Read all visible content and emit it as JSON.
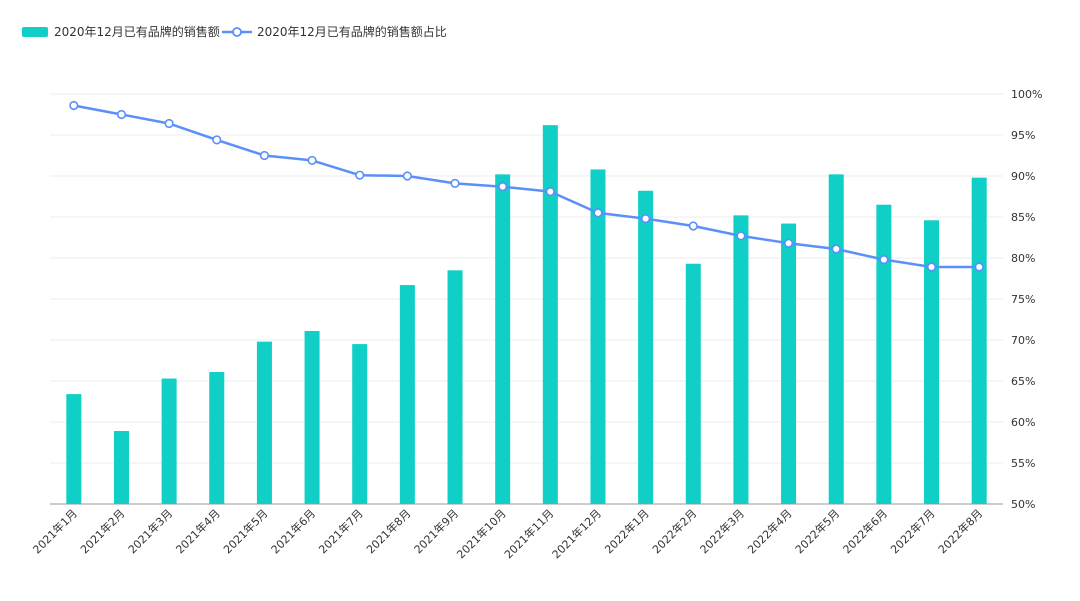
{
  "chart_data": {
    "type": "bar+line",
    "categories": [
      "2021年1月",
      "2021年2月",
      "2021年3月",
      "2021年4月",
      "2021年5月",
      "2021年6月",
      "2021年7月",
      "2021年8月",
      "2021年9月",
      "2021年10月",
      "2021年11月",
      "2021年12月",
      "2022年1月",
      "2022年2月",
      "2022年3月",
      "2022年4月",
      "2022年5月",
      "2022年6月",
      "2022年7月",
      "2022年8月"
    ],
    "series": [
      {
        "name": "2020年12月已有品牌的销售额",
        "type": "bar",
        "axis": "none",
        "values": [
          63.4,
          58.9,
          65.3,
          66.1,
          69.8,
          71.1,
          69.5,
          76.7,
          78.5,
          90.2,
          96.2,
          90.8,
          88.2,
          79.3,
          85.2,
          84.2,
          90.2,
          86.5,
          84.6,
          89.8
        ]
      },
      {
        "name": "2020年12月已有品牌的销售额占比",
        "type": "line",
        "axis": "right",
        "values": [
          98.6,
          97.5,
          96.4,
          94.4,
          92.5,
          91.9,
          90.1,
          90.0,
          89.1,
          88.7,
          88.1,
          85.5,
          84.8,
          83.9,
          82.7,
          81.8,
          81.1,
          79.8,
          78.9,
          78.9
        ]
      }
    ],
    "y_right": {
      "ylim": [
        50,
        100
      ],
      "ticks": [
        "100%",
        "95%",
        "90%",
        "85%",
        "80%",
        "75%",
        "70%",
        "65%",
        "60%",
        "55%",
        "50%"
      ]
    },
    "grid": true,
    "legend_position": "top-left",
    "colors": {
      "bar": "#0fcfc6",
      "line": "#5b8ff9"
    }
  }
}
